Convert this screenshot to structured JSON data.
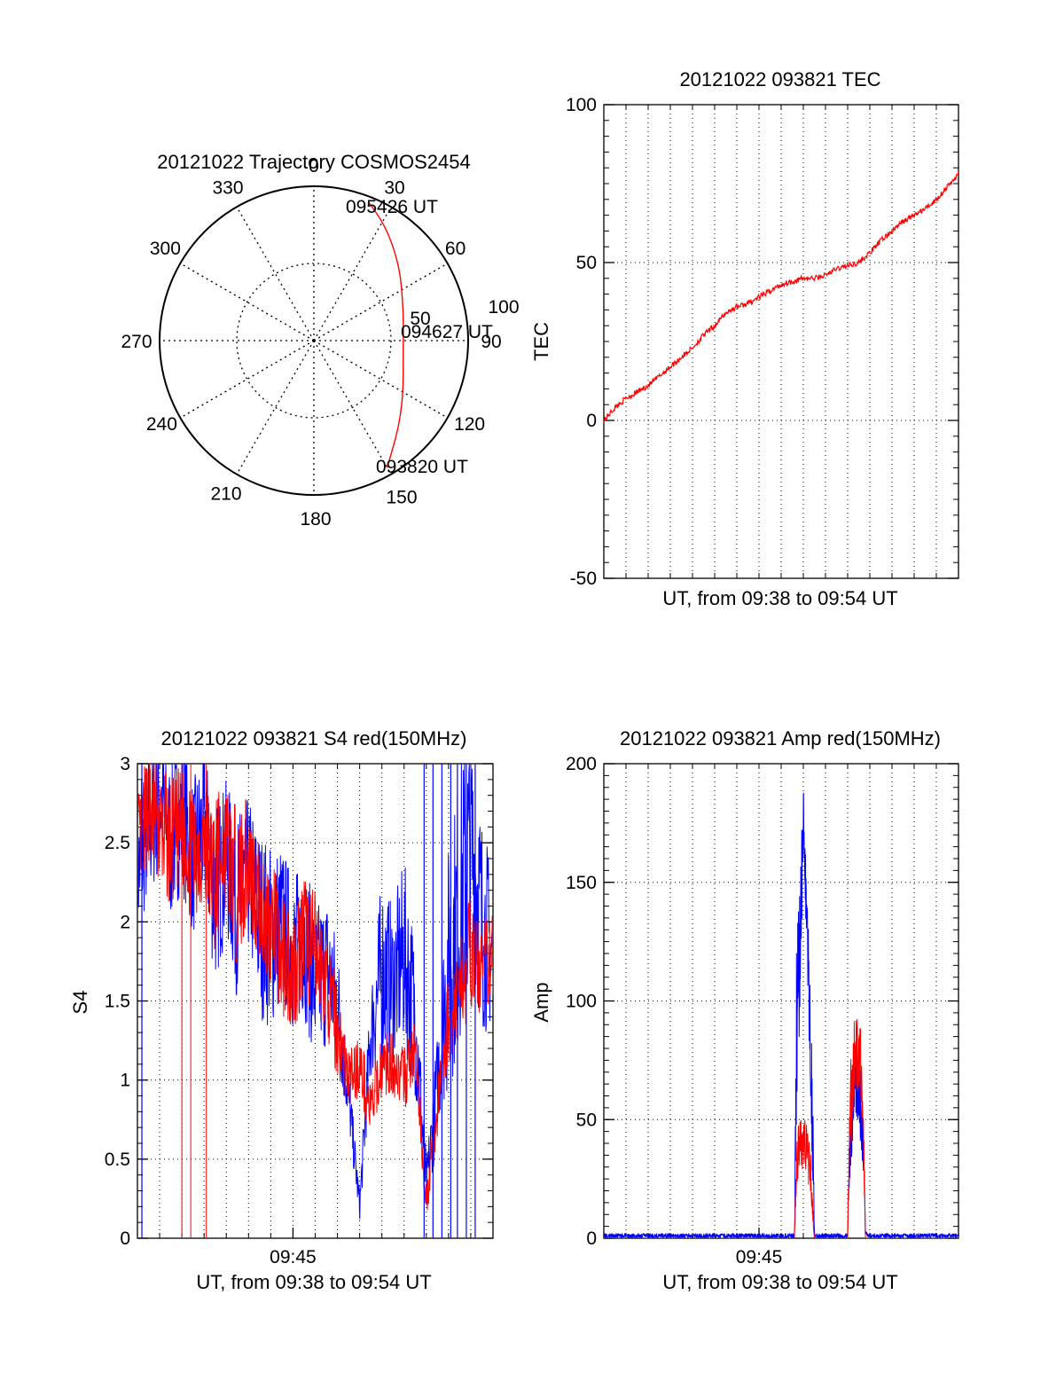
{
  "colors": {
    "red": "#ff0000",
    "blue": "#0000ff",
    "axis": "#000000",
    "grid": "#000000"
  },
  "chart_data": [
    {
      "type": "polar",
      "title": "20121022 Trajectory COSMOS2454",
      "angle_labels": [
        "0",
        "30",
        "60",
        "90",
        "120",
        "150",
        "180",
        "210",
        "240",
        "270",
        "300",
        "330"
      ],
      "radius_labels": [
        "50",
        "100"
      ],
      "direction": "clockwise from top",
      "grid": true,
      "trajectory": {
        "color": "#ff0000",
        "points": [
          {
            "az": 150,
            "r": 95
          },
          {
            "az": 136,
            "r": 79
          },
          {
            "az": 122,
            "r": 68
          },
          {
            "az": 108,
            "r": 61
          },
          {
            "az": 94,
            "r": 58
          },
          {
            "az": 80,
            "r": 59
          },
          {
            "az": 66,
            "r": 63
          },
          {
            "az": 52,
            "r": 71
          },
          {
            "az": 40,
            "r": 80
          },
          {
            "az": 30,
            "r": 89
          },
          {
            "az": 22,
            "r": 96
          }
        ]
      },
      "time_labels": [
        {
          "text": "095426 UT"
        },
        {
          "text": "094627 UT"
        },
        {
          "text": "093820 UT"
        }
      ]
    },
    {
      "type": "line",
      "title": "20121022 093821 TEC",
      "xlabel": "UT, from 09:38 to 09:54 UT",
      "ylabel": "TEC",
      "xlim": [
        0,
        16
      ],
      "ylim": [
        -50,
        100
      ],
      "yticks": [
        "-50",
        "0",
        "50",
        "100"
      ],
      "grid": true,
      "series": [
        {
          "color": "#ff0000",
          "x": [
            0,
            0.5,
            1,
            1.5,
            2,
            2.5,
            3,
            3.5,
            4,
            4.5,
            5,
            5.5,
            6,
            6.5,
            7,
            7.5,
            8,
            8.5,
            9,
            9.5,
            10,
            10.5,
            11,
            11.5,
            12,
            12.5,
            13,
            13.5,
            14,
            14.5,
            15,
            15.5,
            16
          ],
          "y": [
            0,
            4,
            7,
            9,
            11,
            14,
            17,
            20,
            23,
            27,
            30,
            34,
            36,
            37,
            39,
            41,
            43,
            44,
            45,
            45,
            46,
            48,
            49,
            50,
            53,
            57,
            60,
            63,
            65,
            67,
            70,
            74,
            78
          ]
        }
      ]
    },
    {
      "type": "line",
      "title": "20121022 093821 S4 red(150MHz)",
      "xlabel": "UT, from 09:38 to 09:54 UT",
      "ylabel": "S4",
      "xlim": [
        0,
        16
      ],
      "ylim": [
        0,
        3
      ],
      "yticks": [
        "0",
        "0.5",
        "1",
        "1.5",
        "2",
        "2.5",
        "3"
      ],
      "xtick_labels": [
        {
          "x": 7,
          "label": "09:45"
        }
      ],
      "grid": true,
      "series": [
        {
          "color": "#0000ff",
          "x": [
            0,
            0.5,
            1,
            1.5,
            2,
            2.5,
            3,
            3.5,
            4,
            4.5,
            5,
            5.5,
            6,
            6.5,
            7,
            7.5,
            8,
            8.5,
            9,
            9.5,
            10,
            10.5,
            11,
            11.5,
            12,
            12.5,
            13,
            13.5,
            14,
            14.5,
            15,
            15.5,
            16
          ],
          "y": [
            2.3,
            2.6,
            2.8,
            2.5,
            2.7,
            2.4,
            2.6,
            2.2,
            2.4,
            2.1,
            2.3,
            2.0,
            1.9,
            2.0,
            1.8,
            1.9,
            1.6,
            1.7,
            1.5,
            0.9,
            0.2,
            1.3,
            1.7,
            1.6,
            1.8,
            1.4,
            0.3,
            1.0,
            1.7,
            2.1,
            2.5,
            2.0,
            1.8
          ],
          "spread": [
            0.4,
            0.5,
            0.5,
            0.5,
            0.5,
            0.5,
            0.5,
            0.6,
            0.5,
            0.6,
            0.5,
            0.6,
            0.6,
            0.5,
            0.5,
            0.5,
            0.5,
            0.5,
            0.4,
            0.2,
            0.1,
            0.3,
            0.6,
            0.5,
            0.6,
            0.5,
            0.2,
            0.3,
            0.8,
            0.9,
            0.8,
            0.7,
            0.5
          ]
        },
        {
          "color": "#ff0000",
          "x": [
            0,
            0.5,
            1,
            1.5,
            2,
            2.5,
            3,
            3.5,
            4,
            4.5,
            5,
            5.5,
            6,
            6.5,
            7,
            7.5,
            8,
            8.5,
            9,
            9.5,
            10,
            10.5,
            11,
            11.5,
            12,
            12.5,
            13,
            13.5,
            14,
            14.5,
            15,
            15.5,
            16
          ],
          "y": [
            2.5,
            2.7,
            2.6,
            2.5,
            2.6,
            2.4,
            2.5,
            2.3,
            2.5,
            2.2,
            2.4,
            2.1,
            2.0,
            1.8,
            1.7,
            1.9,
            1.8,
            1.6,
            1.3,
            1.0,
            1.1,
            0.8,
            1.1,
            1.1,
            1.0,
            1.2,
            0.2,
            0.8,
            1.4,
            1.6,
            1.8,
            1.7,
            1.8
          ],
          "spread": [
            0.3,
            0.4,
            0.4,
            0.4,
            0.4,
            0.4,
            0.4,
            0.5,
            0.4,
            0.5,
            0.4,
            0.4,
            0.4,
            0.4,
            0.4,
            0.4,
            0.4,
            0.3,
            0.3,
            0.2,
            0.2,
            0.2,
            0.2,
            0.2,
            0.2,
            0.2,
            0.1,
            0.2,
            0.3,
            0.3,
            0.4,
            0.3,
            0.3
          ]
        }
      ]
    },
    {
      "type": "line",
      "title": "20121022 093821 Amp red(150MHz)",
      "xlabel": "UT, from 09:38 to 09:54 UT",
      "ylabel": "Amp",
      "xlim": [
        0,
        16
      ],
      "ylim": [
        0,
        200
      ],
      "yticks": [
        "0",
        "50",
        "100",
        "150",
        "200"
      ],
      "xtick_labels": [
        {
          "x": 7,
          "label": "09:45"
        }
      ],
      "grid": true,
      "series": [
        {
          "color": "#0000ff",
          "x": [
            0,
            2,
            4,
            6,
            8,
            8.6,
            8.7,
            8.9,
            9.0,
            9.2,
            9.4,
            9.5,
            10,
            11,
            11.1,
            11.3,
            11.5,
            11.7,
            11.8,
            12,
            14,
            16
          ],
          "y": [
            1,
            1,
            1,
            1,
            1,
            1,
            90,
            140,
            180,
            130,
            60,
            1,
            1,
            1,
            40,
            70,
            60,
            45,
            2,
            1,
            1,
            1
          ],
          "spread": [
            1,
            1,
            1,
            1,
            1,
            1,
            40,
            30,
            10,
            25,
            30,
            1,
            1,
            1,
            20,
            15,
            15,
            20,
            1,
            1,
            1,
            1
          ]
        },
        {
          "color": "#ff0000",
          "x": [
            0,
            8,
            8.6,
            8.7,
            8.9,
            9.1,
            9.3,
            9.5,
            10,
            11,
            11.1,
            11.3,
            11.5,
            11.7,
            11.8,
            16
          ],
          "y": [
            0,
            0,
            0,
            35,
            40,
            38,
            30,
            0,
            0,
            0,
            50,
            75,
            80,
            60,
            0,
            0
          ],
          "spread": [
            0,
            0,
            0,
            12,
            10,
            12,
            12,
            0,
            0,
            0,
            20,
            20,
            15,
            20,
            0,
            0
          ]
        }
      ]
    }
  ]
}
